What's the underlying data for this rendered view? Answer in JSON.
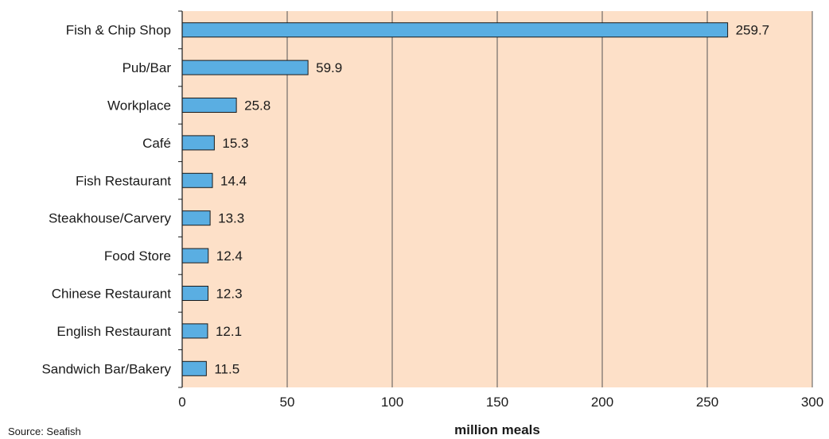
{
  "chart_data": {
    "type": "bar",
    "orientation": "horizontal",
    "categories": [
      "Fish & Chip Shop",
      "Pub/Bar",
      "Workplace",
      "Café",
      "Fish Restaurant",
      "Steakhouse/Carvery",
      "Food Store",
      "Chinese Restaurant",
      "English Restaurant",
      "Sandwich Bar/Bakery"
    ],
    "values": [
      259.7,
      59.9,
      25.8,
      15.3,
      14.4,
      13.3,
      12.4,
      12.3,
      12.1,
      11.5
    ],
    "value_labels": [
      "259.7",
      "59.9",
      "25.8",
      "15.3",
      "14.4",
      "13.3",
      "12.4",
      "12.3",
      "12.1",
      "11.5"
    ],
    "xlabel": "million meals",
    "ylabel": "",
    "xlim": [
      0,
      300
    ],
    "xticks": [
      0,
      50,
      100,
      150,
      200,
      250,
      300
    ],
    "xtick_labels": [
      "0",
      "50",
      "100",
      "150",
      "200",
      "250",
      "300"
    ],
    "grid": true,
    "legend": "none",
    "colors": {
      "bar_fill": "#5aaee2",
      "bar_stroke": "#1a1a1a",
      "plot_background": "#fde0c8",
      "grid": "#555555"
    }
  },
  "source_note": "Source: Seafish"
}
